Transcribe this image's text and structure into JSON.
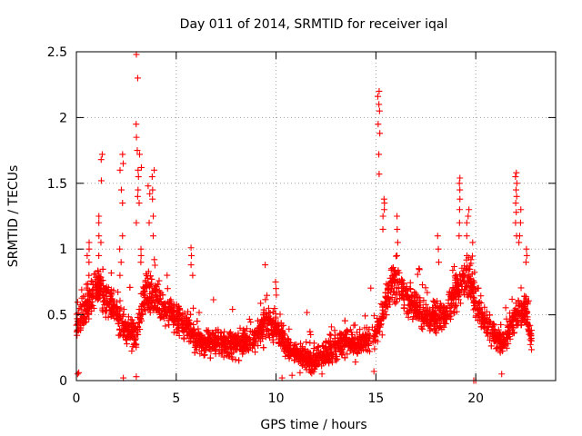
{
  "chart_data": {
    "type": "scatter",
    "title": "Day 011 of 2014, SRMTID for receiver iqal",
    "xlabel": "GPS time / hours",
    "ylabel": "SRMTID / TECUs",
    "xlim": [
      0,
      24
    ],
    "ylim": [
      0,
      2.5
    ],
    "x_ticks": [
      0,
      5,
      10,
      15,
      20
    ],
    "x_tick_labels": [
      "0",
      "5",
      "10",
      "15",
      "20"
    ],
    "y_ticks": [
      0,
      0.5,
      1,
      1.5,
      2,
      2.5
    ],
    "y_tick_labels": [
      "0",
      "0.5",
      "1",
      "1.5",
      "2",
      "2.5"
    ],
    "grid": true,
    "marker": "+",
    "colors": {
      "points": "#ff0000",
      "grid": "#a0a0a0",
      "axes": "#000000"
    },
    "profile": [
      [
        0.0,
        0.45
      ],
      [
        0.5,
        0.55
      ],
      [
        1.0,
        0.72
      ],
      [
        1.5,
        0.62
      ],
      [
        2.0,
        0.5
      ],
      [
        2.5,
        0.38
      ],
      [
        3.0,
        0.35
      ],
      [
        3.5,
        0.7
      ],
      [
        4.0,
        0.62
      ],
      [
        4.5,
        0.55
      ],
      [
        5.0,
        0.48
      ],
      [
        5.5,
        0.4
      ],
      [
        6.0,
        0.32
      ],
      [
        6.5,
        0.28
      ],
      [
        7.0,
        0.3
      ],
      [
        7.5,
        0.27
      ],
      [
        8.0,
        0.28
      ],
      [
        8.5,
        0.3
      ],
      [
        9.0,
        0.33
      ],
      [
        9.5,
        0.45
      ],
      [
        10.0,
        0.38
      ],
      [
        10.5,
        0.28
      ],
      [
        11.0,
        0.2
      ],
      [
        11.5,
        0.15
      ],
      [
        12.0,
        0.16
      ],
      [
        12.5,
        0.2
      ],
      [
        13.0,
        0.26
      ],
      [
        13.5,
        0.3
      ],
      [
        14.0,
        0.28
      ],
      [
        14.5,
        0.3
      ],
      [
        15.0,
        0.35
      ],
      [
        15.3,
        0.5
      ],
      [
        15.7,
        0.7
      ],
      [
        16.0,
        0.75
      ],
      [
        16.5,
        0.62
      ],
      [
        17.0,
        0.55
      ],
      [
        17.5,
        0.5
      ],
      [
        18.0,
        0.48
      ],
      [
        18.5,
        0.5
      ],
      [
        19.0,
        0.65
      ],
      [
        19.5,
        0.8
      ],
      [
        20.0,
        0.6
      ],
      [
        20.5,
        0.45
      ],
      [
        21.0,
        0.32
      ],
      [
        21.5,
        0.3
      ],
      [
        22.0,
        0.5
      ],
      [
        22.5,
        0.55
      ],
      [
        22.8,
        0.3
      ]
    ],
    "spikes": [
      {
        "x": 0.1,
        "values": [
          0.06,
          0.05,
          0.38,
          0.47
        ]
      },
      {
        "x": 0.6,
        "values": [
          0.8,
          0.9,
          1.05,
          1.0,
          0.95
        ]
      },
      {
        "x": 1.1,
        "values": [
          1.25,
          1.2,
          1.1,
          0.95
        ]
      },
      {
        "x": 1.25,
        "values": [
          1.72,
          1.68,
          1.52,
          1.05
        ]
      },
      {
        "x": 2.2,
        "values": [
          1.6,
          1.0,
          0.8
        ]
      },
      {
        "x": 2.3,
        "values": [
          1.72,
          1.65,
          1.45,
          1.35,
          1.1,
          0.9
        ]
      },
      {
        "x": 3.05,
        "values": [
          2.48,
          2.3,
          1.95,
          1.85,
          1.75,
          1.6,
          1.55,
          1.45,
          1.4,
          1.2
        ]
      },
      {
        "x": 3.2,
        "values": [
          1.72,
          1.62,
          1.35,
          1.0,
          0.95,
          0.9
        ]
      },
      {
        "x": 3.85,
        "values": [
          1.6,
          1.55,
          1.45,
          1.38,
          1.25,
          1.1,
          0.92
        ]
      },
      {
        "x": 3.65,
        "values": [
          1.48,
          1.42,
          1.2
        ]
      },
      {
        "x": 5.8,
        "values": [
          1.01,
          0.95,
          0.88,
          0.8
        ]
      },
      {
        "x": 9.5,
        "values": [
          0.88
        ]
      },
      {
        "x": 10.0,
        "values": [
          0.75,
          0.7,
          0.65
        ]
      },
      {
        "x": 15.15,
        "values": [
          2.2,
          2.16,
          2.1,
          2.05,
          1.95,
          1.88,
          1.72,
          1.57
        ]
      },
      {
        "x": 15.4,
        "values": [
          1.38,
          1.35,
          1.3,
          1.25,
          1.15
        ]
      },
      {
        "x": 16.1,
        "values": [
          1.25,
          1.15,
          1.05,
          0.95
        ]
      },
      {
        "x": 18.1,
        "values": [
          1.1,
          1.0,
          0.9
        ]
      },
      {
        "x": 19.2,
        "values": [
          1.54,
          1.5,
          1.45,
          1.38,
          1.3,
          1.2,
          1.1
        ]
      },
      {
        "x": 19.6,
        "values": [
          1.3,
          1.25,
          1.2,
          1.1,
          0.95
        ]
      },
      {
        "x": 19.8,
        "values": [
          1.05,
          0.92
        ]
      },
      {
        "x": 22.05,
        "values": [
          1.58,
          1.55,
          1.5,
          1.45,
          1.4,
          1.35,
          1.28,
          1.2,
          1.1
        ]
      },
      {
        "x": 22.2,
        "values": [
          1.3,
          1.2,
          1.1,
          1.05
        ]
      },
      {
        "x": 22.5,
        "values": [
          1.0,
          0.95,
          0.9
        ]
      }
    ],
    "low_points": [
      [
        2.35,
        0.02
      ],
      [
        3.0,
        0.03
      ],
      [
        10.3,
        0.02
      ],
      [
        14.9,
        0.07
      ],
      [
        19.9,
        0.0
      ],
      [
        20.0,
        0.0
      ],
      [
        21.3,
        0.05
      ],
      [
        10.8,
        0.04
      ],
      [
        11.2,
        0.06
      ],
      [
        12.3,
        0.05
      ]
    ],
    "noise_spread": 0.18,
    "points_per_hour": 130,
    "random_seed": 11
  }
}
